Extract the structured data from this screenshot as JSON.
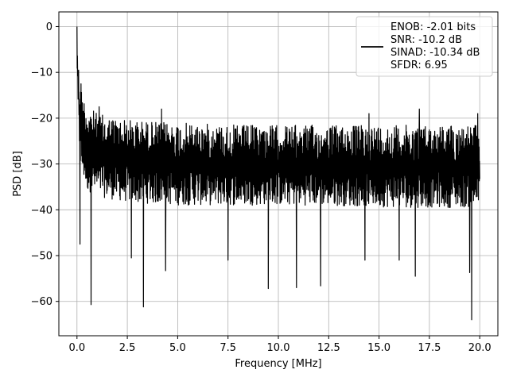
{
  "chart_data": {
    "type": "line",
    "title": "",
    "xlabel": "Frequency [MHz]",
    "ylabel": "PSD [dB]",
    "xlim": [
      -0.9,
      20.9
    ],
    "ylim": [
      -67.5,
      3.2
    ],
    "xticks": [
      0.0,
      2.5,
      5.0,
      7.5,
      10.0,
      12.5,
      15.0,
      17.5,
      20.0
    ],
    "xtick_labels": [
      "0.0",
      "2.5",
      "5.0",
      "7.5",
      "10.0",
      "12.5",
      "15.0",
      "17.5",
      "20.0"
    ],
    "yticks": [
      0,
      -10,
      -20,
      -30,
      -40,
      -50,
      -60
    ],
    "ytick_labels": [
      "0",
      "−10",
      "−20",
      "−30",
      "−40",
      "−50",
      "−60"
    ],
    "grid": true,
    "legend_position": "top-right",
    "line_color": "#000000",
    "series": [
      {
        "legend_lines": [
          "ENOB: -2.01 bits",
          "SNR: -10.2 dB",
          "SINAD: -10.34 dB",
          "SFDR: 6.95"
        ],
        "shape": [
          {
            "x": 0.0,
            "upper": 0.0,
            "lower": -8
          },
          {
            "x": 0.05,
            "upper": -9,
            "lower": -18
          },
          {
            "x": 0.15,
            "upper": -12,
            "lower": -31
          },
          {
            "x": 0.3,
            "upper": -15,
            "lower": -33
          },
          {
            "x": 0.5,
            "upper": -17,
            "lower": -36
          },
          {
            "x": 1.0,
            "upper": -19,
            "lower": -37
          },
          {
            "x": 2.0,
            "upper": -20,
            "lower": -38
          },
          {
            "x": 3.0,
            "upper": -20.5,
            "lower": -38.5
          },
          {
            "x": 5.0,
            "upper": -21,
            "lower": -39
          },
          {
            "x": 8.0,
            "upper": -21.5,
            "lower": -39
          },
          {
            "x": 12.0,
            "upper": -21.5,
            "lower": -39
          },
          {
            "x": 16.0,
            "upper": -21.5,
            "lower": -39.5
          },
          {
            "x": 20.0,
            "upper": -21.5,
            "lower": -39.5
          }
        ],
        "spikes_up": [
          {
            "x": 0.0,
            "y": 0.0
          },
          {
            "x": 0.08,
            "y": -9.5
          },
          {
            "x": 0.2,
            "y": -12.5
          },
          {
            "x": 1.1,
            "y": -17.5
          },
          {
            "x": 4.2,
            "y": -18
          },
          {
            "x": 14.5,
            "y": -19
          },
          {
            "x": 16.8,
            "y": -20
          },
          {
            "x": 17.0,
            "y": -18
          },
          {
            "x": 19.9,
            "y": -19
          }
        ],
        "spikes_down": [
          {
            "x": 0.15,
            "y": -47.5
          },
          {
            "x": 0.7,
            "y": -60.7
          },
          {
            "x": 2.7,
            "y": -50.5
          },
          {
            "x": 3.3,
            "y": -61.2
          },
          {
            "x": 4.4,
            "y": -53.3
          },
          {
            "x": 7.5,
            "y": -51
          },
          {
            "x": 9.5,
            "y": -57.2
          },
          {
            "x": 10.9,
            "y": -57
          },
          {
            "x": 12.1,
            "y": -56.6
          },
          {
            "x": 14.3,
            "y": -51
          },
          {
            "x": 16.0,
            "y": -51
          },
          {
            "x": 16.8,
            "y": -54.5
          },
          {
            "x": 19.5,
            "y": -53.7
          },
          {
            "x": 19.6,
            "y": -64
          }
        ],
        "sample_count": 1800
      }
    ]
  }
}
